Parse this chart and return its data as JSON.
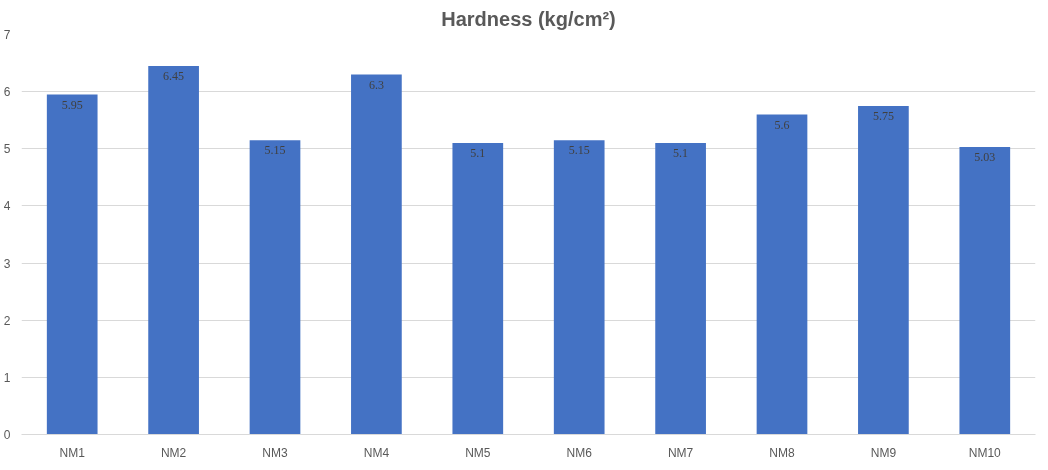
{
  "chart_data": {
    "type": "bar",
    "title": "Hardness (kg/cm²)",
    "categories": [
      "NM1",
      "NM2",
      "NM3",
      "NM4",
      "NM5",
      "NM6",
      "NM7",
      "NM8",
      "NM9",
      "NM10"
    ],
    "values": [
      5.95,
      6.45,
      5.15,
      6.3,
      5.1,
      5.15,
      5.1,
      5.6,
      5.75,
      5.03
    ],
    "color": "#4472c4",
    "data_labels": true,
    "grid": "y",
    "ylim": [
      0,
      7
    ],
    "yticks": [
      0,
      1,
      2,
      3,
      4,
      5,
      6,
      7
    ]
  }
}
